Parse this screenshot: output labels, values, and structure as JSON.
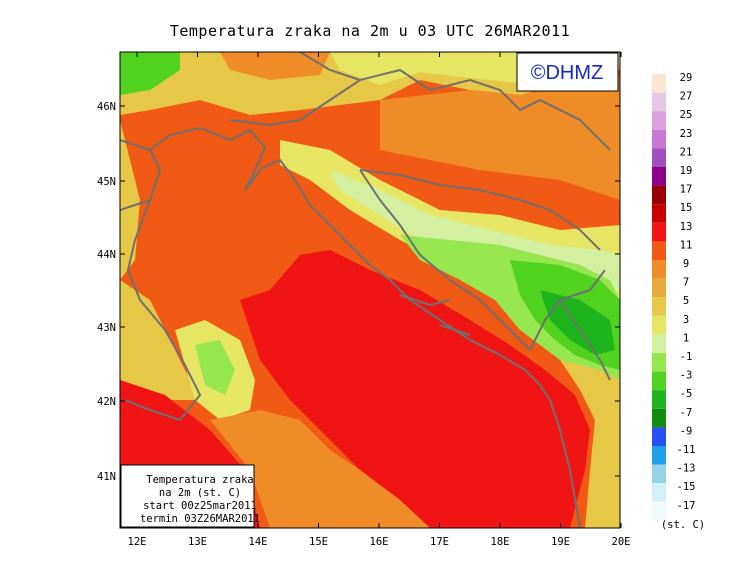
{
  "title": "Temperatura zraka na 2m u 03 UTC 26MAR2011",
  "brand": "©DHMZ",
  "info_box": [
    "Temperatura zraka",
    "na 2m (st. C)",
    "start 00z25mar2011",
    "termin 03Z26MAR2011"
  ],
  "lat_labels": [
    "46N",
    "45N",
    "44N",
    "43N",
    "42N",
    "41N"
  ],
  "lon_labels": [
    "12E",
    "13E",
    "14E",
    "15E",
    "16E",
    "17E",
    "18E",
    "19E",
    "20E"
  ],
  "legend": {
    "unit": "(st. C)",
    "labels": [
      "29",
      "27",
      "25",
      "23",
      "21",
      "19",
      "17",
      "15",
      "13",
      "11",
      "9",
      "7",
      "5",
      "3",
      "1",
      "-1",
      "-3",
      "-5",
      "-7",
      "-9",
      "-11",
      "-13",
      "-15",
      "-17"
    ],
    "colors": [
      "#fae6d2",
      "#e6c8e6",
      "#dca0dc",
      "#c878d2",
      "#a050be",
      "#8c008c",
      "#960000",
      "#c80000",
      "#f01414",
      "#f05a14",
      "#f08c28",
      "#e6aa3c",
      "#e6c846",
      "#e6e664",
      "#d2f0a0",
      "#96e650",
      "#50d21e",
      "#1eb41e",
      "#108c10",
      "#2850f0",
      "#1ea0e6",
      "#96d2e6",
      "#d2f0fa",
      "#f0fafa"
    ]
  }
}
